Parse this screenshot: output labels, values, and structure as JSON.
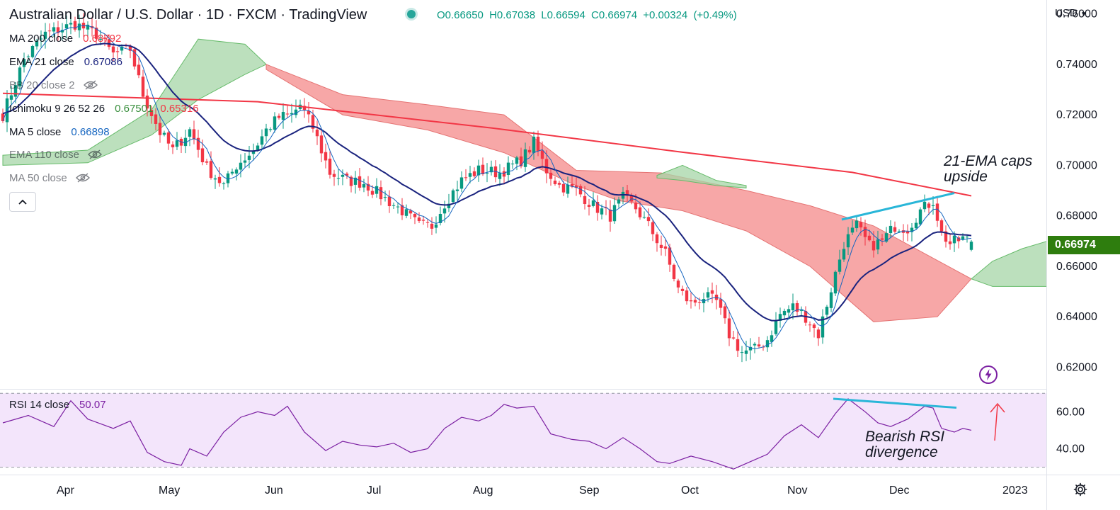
{
  "header": {
    "title": "Australian Dollar / U.S. Dollar · 1D · FXCM · TradingView",
    "ohlc": {
      "open": "O0.66650",
      "high": "H0.67038",
      "low": "L0.66594",
      "close": "C0.66974",
      "change": "+0.00324",
      "change_pct": "(+0.49%)"
    }
  },
  "legend": [
    {
      "name": "MA 200 close",
      "value": "0.68792",
      "color": "#f23645",
      "visible": true
    },
    {
      "name": "EMA 21 close",
      "value": "0.67086",
      "color": "#1a237e",
      "visible": true
    },
    {
      "name": "BB 20 close 2",
      "value": "",
      "color": "#9598a1",
      "visible": false
    },
    {
      "name": "Ichimoku 9 26 52 26",
      "value": "0.67501",
      "value2": "0.65316",
      "color": "#131722",
      "value_color": "#388e3c",
      "value2_color": "#f23645",
      "visible": true
    },
    {
      "name": "MA 5 close",
      "value": "0.66898",
      "color": "#1565c0",
      "visible": true
    },
    {
      "name": "EMA 110 close",
      "value": "",
      "color": "#9598a1",
      "visible": false
    },
    {
      "name": "MA 50 close",
      "value": "",
      "color": "#9598a1",
      "visible": false
    }
  ],
  "rsi_legend": {
    "name": "RSI 14 close",
    "value": "50.07"
  },
  "price_axis": {
    "currency": "USD",
    "current_price": "0.66974"
  },
  "annotations": {
    "ema_caps": [
      "21-EMA caps",
      "upside"
    ],
    "rsi_divergence": [
      "Bearish RSI",
      "divergence"
    ]
  },
  "colors": {
    "up": "#089981",
    "down": "#f23645",
    "ma200": "#f23645",
    "ema21": "#1a237e",
    "ma5": "#1565c0",
    "cloud_bull": "#a5d6a7",
    "cloud_bear": "#f48a8a",
    "rsi": "#7b1fa2",
    "rsi_band": "#f3e5fb",
    "trendline": "#29b6d8",
    "arrow": "#f23645",
    "price_label": "#2e7d0e"
  },
  "chart_data": {
    "type": "candlestick",
    "title": "Australian Dollar / U.S. Dollar · 1D · FXCM",
    "x_ticks": [
      "Apr",
      "May",
      "Jun",
      "Jul",
      "Aug",
      "Sep",
      "Oct",
      "Nov",
      "Dec",
      "2023"
    ],
    "y_ticks": [
      "0.62000",
      "0.64000",
      "0.66000",
      "0.68000",
      "0.70000",
      "0.72000",
      "0.74000",
      "0.76000"
    ],
    "ylim": [
      0.6117,
      0.7655
    ],
    "rsi_ticks": [
      "40.00",
      "60.00"
    ],
    "rsi_ylim": [
      26,
      72
    ],
    "rsi_band": [
      30,
      70
    ],
    "anchors": [
      [
        0,
        0.72
      ],
      [
        5,
        0.742
      ],
      [
        10,
        0.752
      ],
      [
        17,
        0.756
      ],
      [
        22,
        0.752
      ],
      [
        26,
        0.744
      ],
      [
        30,
        0.746
      ],
      [
        33,
        0.728
      ],
      [
        37,
        0.713
      ],
      [
        40,
        0.706
      ],
      [
        44,
        0.714
      ],
      [
        48,
        0.699
      ],
      [
        52,
        0.692
      ],
      [
        55,
        0.7
      ],
      [
        59,
        0.706
      ],
      [
        62,
        0.714
      ],
      [
        65,
        0.719
      ],
      [
        68,
        0.72
      ],
      [
        70,
        0.724
      ],
      [
        73,
        0.715
      ],
      [
        77,
        0.697
      ],
      [
        81,
        0.694
      ],
      [
        85,
        0.693
      ],
      [
        89,
        0.688
      ],
      [
        94,
        0.682
      ],
      [
        98,
        0.676
      ],
      [
        101,
        0.676
      ],
      [
        104,
        0.685
      ],
      [
        108,
        0.694
      ],
      [
        112,
        0.698
      ],
      [
        117,
        0.697
      ],
      [
        122,
        0.702
      ],
      [
        125,
        0.709
      ],
      [
        128,
        0.698
      ],
      [
        131,
        0.692
      ],
      [
        135,
        0.69
      ],
      [
        139,
        0.684
      ],
      [
        143,
        0.68
      ],
      [
        146,
        0.687
      ],
      [
        149,
        0.683
      ],
      [
        152,
        0.676
      ],
      [
        156,
        0.665
      ],
      [
        159,
        0.651
      ],
      [
        162,
        0.645
      ],
      [
        165,
        0.648
      ],
      [
        168,
        0.646
      ],
      [
        171,
        0.633
      ],
      [
        174,
        0.626
      ],
      [
        177,
        0.627
      ],
      [
        180,
        0.631
      ],
      [
        183,
        0.641
      ],
      [
        186,
        0.644
      ],
      [
        189,
        0.64
      ],
      [
        192,
        0.633
      ],
      [
        195,
        0.651
      ],
      [
        198,
        0.669
      ],
      [
        201,
        0.676
      ],
      [
        204,
        0.668
      ],
      [
        207,
        0.67
      ],
      [
        210,
        0.676
      ],
      [
        213,
        0.675
      ],
      [
        216,
        0.682
      ],
      [
        219,
        0.686
      ],
      [
        221,
        0.673
      ],
      [
        223,
        0.669
      ],
      [
        226,
        0.671
      ],
      [
        228,
        0.6697
      ]
    ],
    "series": [
      {
        "name": "MA 200 close",
        "values": [
          [
            0,
            0.7285
          ],
          [
            60,
            0.7252
          ],
          [
            115,
            0.7148
          ],
          [
            160,
            0.7052
          ],
          [
            200,
            0.6972
          ],
          [
            228,
            0.6879
          ]
        ]
      },
      {
        "name": "Kumo span A/B (bull)",
        "values": [
          [
            0,
            0.7
          ],
          [
            25,
            0.701
          ],
          [
            40,
            0.718
          ],
          [
            50,
            0.745
          ]
        ]
      },
      {
        "name": "Kumo span A/B (bear)",
        "values": [
          [
            50,
            0.738
          ],
          [
            70,
            0.722
          ],
          [
            95,
            0.724
          ],
          [
            110,
            0.712
          ],
          [
            132,
            0.7
          ],
          [
            150,
            0.695
          ],
          [
            170,
            0.688
          ],
          [
            190,
            0.679
          ],
          [
            205,
            0.66
          ],
          [
            225,
            0.655
          ]
        ]
      },
      {
        "name": "RSI 14 close",
        "values": [
          [
            0,
            54
          ],
          [
            6,
            58
          ],
          [
            12,
            52
          ],
          [
            16,
            66
          ],
          [
            20,
            56
          ],
          [
            26,
            51
          ],
          [
            30,
            55
          ],
          [
            34,
            38
          ],
          [
            38,
            33
          ],
          [
            42,
            31
          ],
          [
            44,
            40
          ],
          [
            48,
            36
          ],
          [
            52,
            49
          ],
          [
            56,
            57
          ],
          [
            60,
            60
          ],
          [
            64,
            58
          ],
          [
            67,
            63
          ],
          [
            71,
            49
          ],
          [
            76,
            39
          ],
          [
            80,
            44
          ],
          [
            84,
            42
          ],
          [
            88,
            41
          ],
          [
            92,
            43
          ],
          [
            96,
            38
          ],
          [
            100,
            40
          ],
          [
            104,
            51
          ],
          [
            108,
            57
          ],
          [
            112,
            55
          ],
          [
            115,
            58
          ],
          [
            118,
            64
          ],
          [
            121,
            62
          ],
          [
            125,
            63
          ],
          [
            129,
            48
          ],
          [
            134,
            45
          ],
          [
            138,
            44
          ],
          [
            142,
            40
          ],
          [
            146,
            46
          ],
          [
            150,
            40
          ],
          [
            154,
            33
          ],
          [
            157,
            32
          ],
          [
            162,
            36
          ],
          [
            167,
            33
          ],
          [
            172,
            29
          ],
          [
            176,
            33
          ],
          [
            180,
            37
          ],
          [
            184,
            47
          ],
          [
            188,
            53
          ],
          [
            192,
            46
          ],
          [
            196,
            59
          ],
          [
            199,
            67
          ],
          [
            203,
            60
          ],
          [
            206,
            54
          ],
          [
            209,
            52
          ],
          [
            213,
            56
          ],
          [
            217,
            63
          ],
          [
            219,
            62
          ],
          [
            221,
            51
          ],
          [
            224,
            49
          ],
          [
            226,
            51
          ],
          [
            228,
            50
          ]
        ]
      }
    ]
  }
}
